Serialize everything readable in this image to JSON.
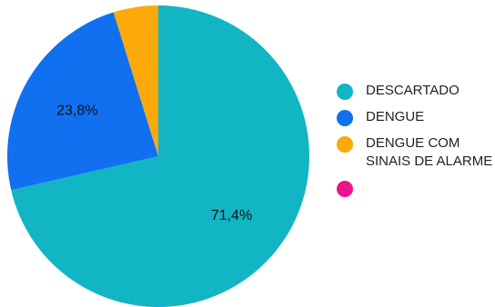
{
  "chart_data": {
    "type": "pie",
    "start_angle_deg": 0,
    "direction": "clockwise",
    "slices": [
      {
        "label": "DESCARTADO",
        "value": 71.4,
        "value_text": "71,4%",
        "color": "#12B5C4"
      },
      {
        "label": "DENGUE",
        "value": 23.8,
        "value_text": "23,8%",
        "color": "#1070F0"
      },
      {
        "label": "DENGUE COM SINAIS DE ALARME",
        "value": 4.8,
        "value_text": "",
        "color": "#FCA90A"
      },
      {
        "label": "",
        "value": 0,
        "value_text": "",
        "color": "#EC138C"
      }
    ],
    "legend": {
      "position": "right",
      "items": [
        {
          "label": "DESCARTADO",
          "color": "#12B5C4"
        },
        {
          "label": "DENGUE",
          "color": "#1070F0"
        },
        {
          "label": "DENGUE COM SINAIS DE ALARME",
          "color": "#FCA90A"
        },
        {
          "label": "",
          "color": "#EC138C"
        }
      ]
    }
  }
}
